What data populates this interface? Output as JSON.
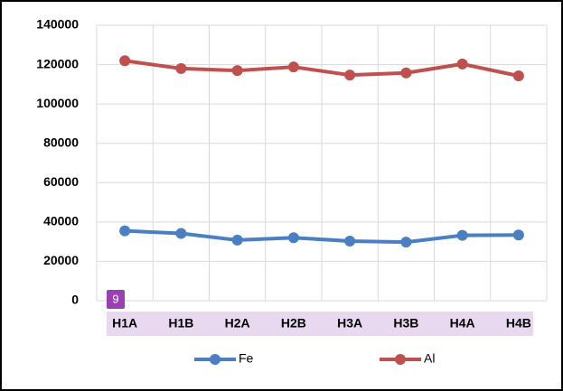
{
  "chart_data": {
    "type": "line",
    "categories": [
      "H1A",
      "H1B",
      "H2A",
      "H2B",
      "H3A",
      "H3B",
      "H4A",
      "H4B"
    ],
    "series": [
      {
        "name": "Fe",
        "color": "#4a7fc1",
        "values": [
          35500,
          34200,
          30800,
          32000,
          30300,
          29800,
          33200,
          33400
        ]
      },
      {
        "name": "Al",
        "color": "#c0504d",
        "values": [
          122000,
          118000,
          117000,
          118800,
          114700,
          115800,
          120300,
          114300
        ]
      }
    ],
    "ylim": [
      0,
      140000
    ],
    "yticks": [
      0,
      20000,
      40000,
      60000,
      80000,
      100000,
      120000,
      140000
    ],
    "grid": true,
    "legend": "bottom",
    "annotations": [
      "9"
    ]
  }
}
